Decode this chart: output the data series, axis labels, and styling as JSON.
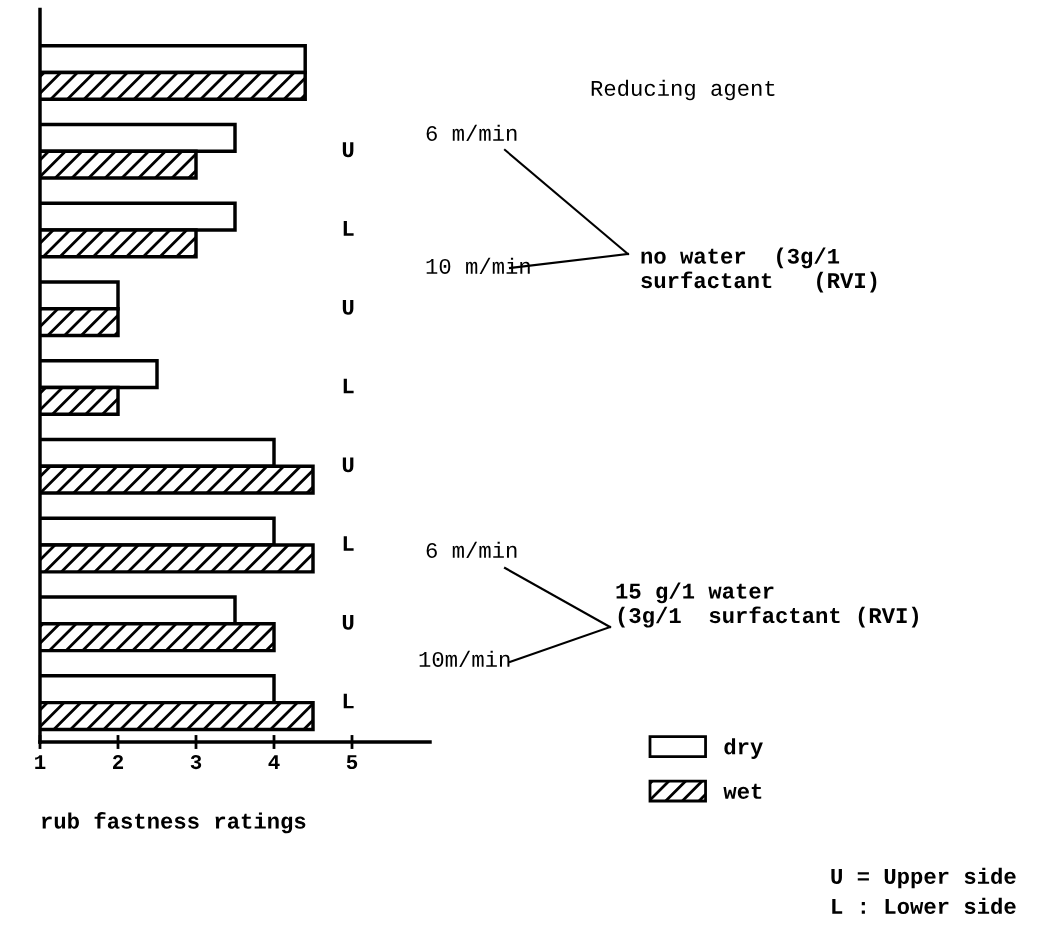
{
  "chart_data": {
    "type": "bar",
    "orientation": "horizontal",
    "xlabel": "rub fastness ratings",
    "categories": [
      null,
      "U",
      "L",
      "U",
      "L",
      "U",
      "L",
      "U",
      "L"
    ],
    "series": [
      {
        "name": "dry",
        "color": "#ffffff",
        "values": [
          4.4,
          3.5,
          3.5,
          2,
          2.5,
          4,
          4,
          3.5,
          4
        ]
      },
      {
        "name": "wet",
        "color": "#000000",
        "values": [
          4.4,
          3,
          3,
          2,
          2,
          4.5,
          4.5,
          4,
          4.5
        ]
      }
    ],
    "xlim": [
      1,
      6
    ],
    "xticks": [
      1,
      2,
      3,
      4,
      5
    ],
    "legend": "right",
    "tick_labels": "x",
    "annotations": [
      "Reducing agent",
      "6 m/min",
      "10 m/min",
      "no water  (3g/1\nsurfactant   (RVI)",
      "6 m/min",
      "10m/min",
      "15 g/1 water\n(3g/1  surfactant (RVI)",
      "U = Upper side",
      "L : Lower side"
    ]
  }
}
